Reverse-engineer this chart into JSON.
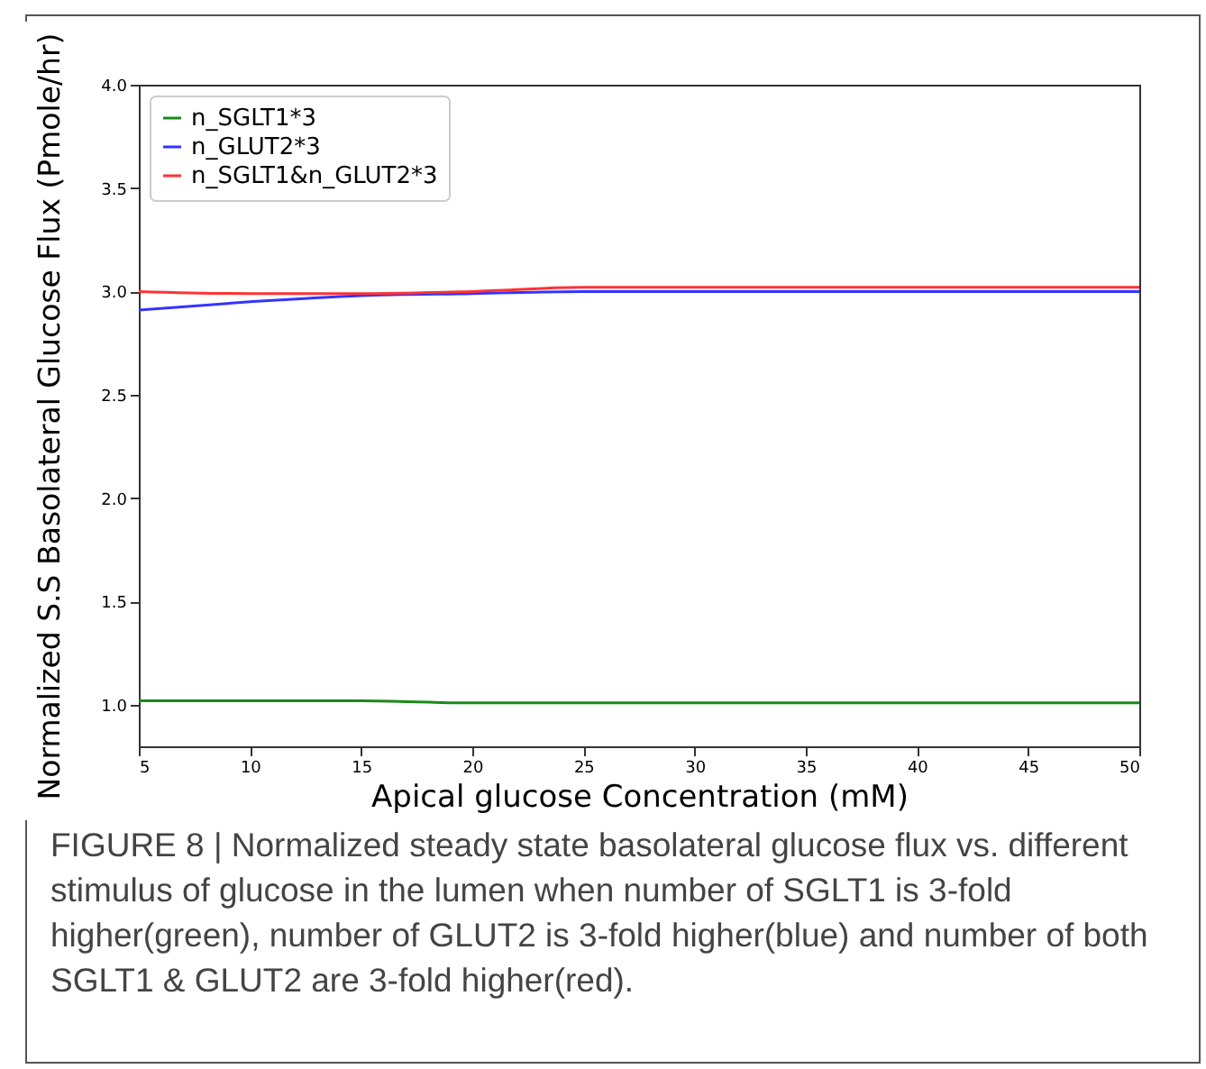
{
  "chart_data": {
    "type": "line",
    "xlabel": "Apical glucose Concentration (mM)",
    "ylabel": "Normalized S.S Basolateral Glucose Flux (Pmole/hr)",
    "x": [
      5,
      10,
      15,
      20,
      25,
      30,
      35,
      40,
      45,
      50
    ],
    "series": [
      {
        "name": "n_SGLT1*3",
        "color": "#1a8a1a",
        "values": [
          1.02,
          1.02,
          1.02,
          1.01,
          1.01,
          1.01,
          1.01,
          1.01,
          1.01,
          1.01
        ]
      },
      {
        "name": "n_GLUT2*3",
        "color": "#3333ff",
        "values": [
          2.91,
          2.95,
          2.98,
          2.99,
          3.0,
          3.0,
          3.0,
          3.0,
          3.0,
          3.0
        ]
      },
      {
        "name": "n_SGLT1&n_GLUT2*3",
        "color": "#ff3333",
        "values": [
          3.0,
          2.99,
          2.99,
          3.0,
          3.02,
          3.02,
          3.02,
          3.02,
          3.02,
          3.02
        ]
      }
    ],
    "xlim": [
      5,
      50
    ],
    "xticks": [
      5,
      10,
      15,
      20,
      25,
      30,
      35,
      40,
      45,
      50
    ],
    "ylim": [
      0.8,
      4.0
    ],
    "yticks": [
      {
        "value": 1,
        "label": "1.0"
      },
      1.5,
      {
        "value": 2,
        "label": "2.0"
      },
      2.5,
      {
        "value": 3,
        "label": "3.0"
      },
      3.5,
      {
        "value": 4,
        "label": "4.0"
      }
    ],
    "legend": "top left",
    "grid": false,
    "annotations": [
      "FIGURE 8 | Normalized steady state basolateral glucose flux vs. different stimulus of glucose in the lumen when number of SGLT1 is 3-fold higher(green), number of GLUT2 is 3-fold higher(blue) and number of both SGLT1 & GLUT2 are 3-fold higher(red)."
    ]
  }
}
